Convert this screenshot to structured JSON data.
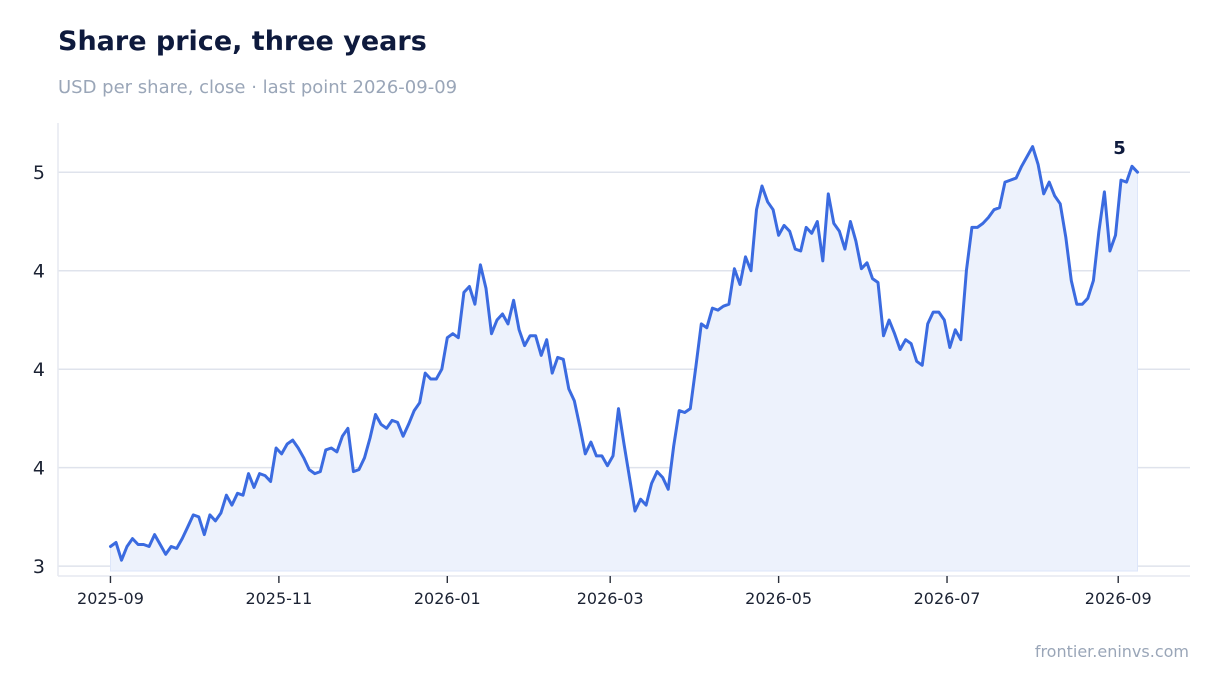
{
  "header": {
    "title": "Share price, three years",
    "subtitle": "USD per share, close · last point 2026-09-09"
  },
  "footer": {
    "source": "frontier.eninvs.com"
  },
  "colors": {
    "line": "#3b6be0",
    "area": "#edf2fc",
    "grid": "#dfe3ec",
    "axis": "#e6e9f0",
    "title": "#0e1a3d",
    "muted": "#9aa6b8"
  },
  "chart_data": {
    "type": "area",
    "title": "Share price, three years",
    "subtitle": "USD per share, close · last point 2026-09-09",
    "xlabel": "",
    "ylabel": "",
    "x_ticks": [
      "2025-09",
      "2025-11",
      "2026-01",
      "2026-03",
      "2026-05",
      "2026-07",
      "2026-09"
    ],
    "y_ticks": [
      3,
      3.5,
      4,
      4.5,
      5
    ],
    "y_tick_labels": [
      "3",
      "4",
      "4",
      "4",
      "5"
    ],
    "ylim": [
      2.95,
      5.25
    ],
    "xlim": [
      "2025-08-13",
      "2026-09-27"
    ],
    "grid": "horizontal",
    "end_label": "5",
    "series": [
      {
        "x": [
          "2025-09-01",
          "2025-09-03",
          "2025-09-05",
          "2025-09-07",
          "2025-09-09",
          "2025-09-11",
          "2025-09-13",
          "2025-09-15",
          "2025-09-17",
          "2025-09-19",
          "2025-09-21",
          "2025-09-23",
          "2025-09-25",
          "2025-09-27",
          "2025-09-29",
          "2025-10-01",
          "2025-10-03",
          "2025-10-05",
          "2025-10-07",
          "2025-10-09",
          "2025-10-11",
          "2025-10-13",
          "2025-10-15",
          "2025-10-17",
          "2025-10-19",
          "2025-10-21",
          "2025-10-23",
          "2025-10-25",
          "2025-10-27",
          "2025-10-29",
          "2025-10-31",
          "2025-11-02",
          "2025-11-04",
          "2025-11-06",
          "2025-11-08",
          "2025-11-10",
          "2025-11-12",
          "2025-11-14",
          "2025-11-16",
          "2025-11-18",
          "2025-11-20",
          "2025-11-22",
          "2025-11-24",
          "2025-11-26",
          "2025-11-28",
          "2025-11-30",
          "2025-12-02",
          "2025-12-04",
          "2025-12-06",
          "2025-12-08",
          "2025-12-10",
          "2025-12-12",
          "2025-12-14",
          "2025-12-16",
          "2025-12-18",
          "2025-12-20",
          "2025-12-22",
          "2025-12-24",
          "2025-12-26",
          "2025-12-28",
          "2025-12-30",
          "2026-01-01",
          "2026-01-03",
          "2026-01-05",
          "2026-01-07",
          "2026-01-09",
          "2026-01-11",
          "2026-01-13",
          "2026-01-15",
          "2026-01-17",
          "2026-01-19",
          "2026-01-21",
          "2026-01-23",
          "2026-01-25",
          "2026-01-27",
          "2026-01-29",
          "2026-01-31",
          "2026-02-02",
          "2026-02-04",
          "2026-02-06",
          "2026-02-08",
          "2026-02-10",
          "2026-02-12",
          "2026-02-14",
          "2026-02-16",
          "2026-02-18",
          "2026-02-20",
          "2026-02-22",
          "2026-02-24",
          "2026-02-26",
          "2026-02-28",
          "2026-03-02",
          "2026-03-04",
          "2026-03-06",
          "2026-03-08",
          "2026-03-10",
          "2026-03-12",
          "2026-03-14",
          "2026-03-16",
          "2026-03-18",
          "2026-03-20",
          "2026-03-22",
          "2026-03-24",
          "2026-03-26",
          "2026-03-28",
          "2026-03-30",
          "2026-04-01",
          "2026-04-03",
          "2026-04-05",
          "2026-04-07",
          "2026-04-09",
          "2026-04-11",
          "2026-04-13",
          "2026-04-15",
          "2026-04-17",
          "2026-04-19",
          "2026-04-21",
          "2026-04-23",
          "2026-04-25",
          "2026-04-27",
          "2026-04-29",
          "2026-05-01",
          "2026-05-03",
          "2026-05-05",
          "2026-05-07",
          "2026-05-09",
          "2026-05-11",
          "2026-05-13",
          "2026-05-15",
          "2026-05-17",
          "2026-05-19",
          "2026-05-21",
          "2026-05-23",
          "2026-05-25",
          "2026-05-27",
          "2026-05-29",
          "2026-05-31",
          "2026-06-02",
          "2026-06-04",
          "2026-06-06",
          "2026-06-08",
          "2026-06-10",
          "2026-06-12",
          "2026-06-14",
          "2026-06-16",
          "2026-06-18",
          "2026-06-20",
          "2026-06-22",
          "2026-06-24",
          "2026-06-26",
          "2026-06-28",
          "2026-06-30",
          "2026-07-02",
          "2026-07-04",
          "2026-07-06",
          "2026-07-08",
          "2026-07-10",
          "2026-07-12",
          "2026-07-14",
          "2026-07-16",
          "2026-07-18",
          "2026-07-20",
          "2026-07-22",
          "2026-07-24",
          "2026-07-26",
          "2026-07-28",
          "2026-07-30",
          "2026-08-01",
          "2026-08-03",
          "2026-08-05",
          "2026-08-07",
          "2026-08-09",
          "2026-08-11",
          "2026-08-13",
          "2026-08-15",
          "2026-08-17",
          "2026-08-19",
          "2026-08-21",
          "2026-08-23",
          "2026-08-25",
          "2026-08-27",
          "2026-08-29",
          "2026-08-31",
          "2026-09-02",
          "2026-09-04",
          "2026-09-06",
          "2026-09-08"
        ],
        "values": [
          3.1,
          3.12,
          3.03,
          3.1,
          3.14,
          3.11,
          3.11,
          3.1,
          3.16,
          3.11,
          3.06,
          3.1,
          3.09,
          3.14,
          3.2,
          3.26,
          3.25,
          3.16,
          3.26,
          3.23,
          3.27,
          3.36,
          3.31,
          3.37,
          3.36,
          3.47,
          3.4,
          3.47,
          3.46,
          3.43,
          3.6,
          3.57,
          3.62,
          3.64,
          3.6,
          3.55,
          3.49,
          3.47,
          3.48,
          3.59,
          3.6,
          3.58,
          3.66,
          3.7,
          3.48,
          3.49,
          3.55,
          3.65,
          3.77,
          3.72,
          3.7,
          3.74,
          3.73,
          3.66,
          3.72,
          3.79,
          3.83,
          3.98,
          3.95,
          3.95,
          4.0,
          4.16,
          4.18,
          4.16,
          4.39,
          4.42,
          4.33,
          4.53,
          4.41,
          4.18,
          4.25,
          4.28,
          4.23,
          4.35,
          4.2,
          4.12,
          4.17,
          4.17,
          4.07,
          4.15,
          3.98,
          4.06,
          4.05,
          3.9,
          3.84,
          3.71,
          3.57,
          3.63,
          3.56,
          3.56,
          3.51,
          3.56,
          3.8,
          3.62,
          3.45,
          3.28,
          3.34,
          3.31,
          3.42,
          3.48,
          3.45,
          3.39,
          3.61,
          3.79,
          3.78,
          3.8,
          4.01,
          4.23,
          4.21,
          4.31,
          4.3,
          4.32,
          4.33,
          4.51,
          4.43,
          4.57,
          4.5,
          4.81,
          4.93,
          4.85,
          4.81,
          4.68,
          4.73,
          4.7,
          4.61,
          4.6,
          4.72,
          4.69,
          4.75,
          4.55,
          4.89,
          4.74,
          4.7,
          4.61,
          4.75,
          4.65,
          4.51,
          4.54,
          4.46,
          4.44,
          4.17,
          4.25,
          4.18,
          4.1,
          4.15,
          4.13,
          4.04,
          4.02,
          4.23,
          4.29,
          4.29,
          4.25,
          4.11,
          4.2,
          4.15,
          4.5,
          4.72,
          4.72,
          4.74,
          4.77,
          4.81,
          4.82,
          4.95,
          4.96,
          4.97,
          5.03,
          5.08,
          5.13,
          5.04,
          4.89,
          4.95,
          4.88,
          4.84,
          4.67,
          4.45,
          4.33,
          4.33,
          4.36,
          4.45,
          4.7,
          4.9,
          4.6,
          4.68,
          4.96,
          4.95,
          5.03,
          5.0
        ],
        "note": "values read approximately off the plotted line"
      }
    ]
  }
}
